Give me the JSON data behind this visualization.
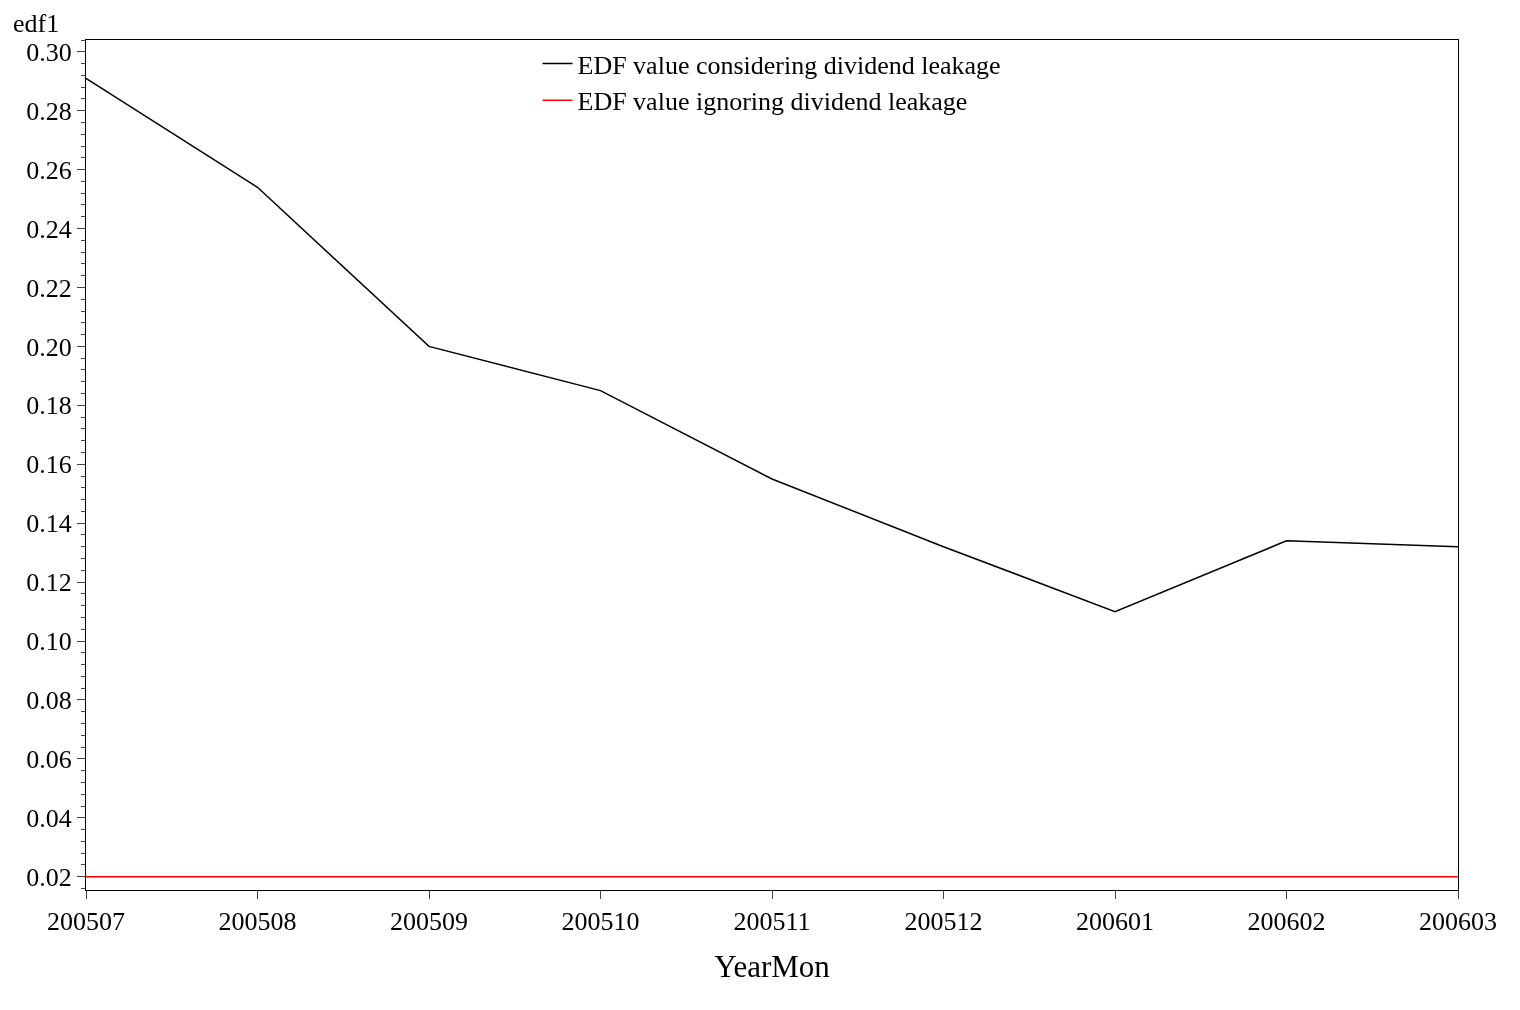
{
  "chart_data": {
    "type": "line",
    "xlabel": "YearMon",
    "ylabel": "edf1",
    "categories": [
      "200507",
      "200508",
      "200509",
      "200510",
      "200511",
      "200512",
      "200601",
      "200602",
      "200603"
    ],
    "series": [
      {
        "name": "EDF value considering dividend leakage",
        "color": "#000000",
        "values": [
          0.291,
          0.254,
          0.2,
          0.185,
          0.155,
          0.132,
          0.11,
          0.134,
          0.132
        ]
      },
      {
        "name": "EDF value ignoring dividend leakage",
        "color": "#ff0000",
        "values": [
          0.02,
          0.02,
          0.02,
          0.02,
          0.02,
          0.02,
          0.02,
          0.02,
          0.02
        ]
      }
    ],
    "ylim": [
      0.0155,
      0.304
    ],
    "yticks": [
      {
        "value": 0.02,
        "label": "0.02"
      },
      {
        "value": 0.04,
        "label": "0.04"
      },
      {
        "value": 0.06,
        "label": "0.06"
      },
      {
        "value": 0.08,
        "label": "0.08"
      },
      {
        "value": 0.1,
        "label": "0.10"
      },
      {
        "value": 0.12,
        "label": "0.12"
      },
      {
        "value": 0.14,
        "label": "0.14"
      },
      {
        "value": 0.16,
        "label": "0.16"
      },
      {
        "value": 0.18,
        "label": "0.18"
      },
      {
        "value": 0.2,
        "label": "0.20"
      },
      {
        "value": 0.22,
        "label": "0.22"
      },
      {
        "value": 0.24,
        "label": "0.24"
      },
      {
        "value": 0.26,
        "label": "0.26"
      },
      {
        "value": 0.28,
        "label": "0.28"
      },
      {
        "value": 0.3,
        "label": "0.30"
      }
    ],
    "legend": "top",
    "marker": "none",
    "line_style": "solid"
  }
}
